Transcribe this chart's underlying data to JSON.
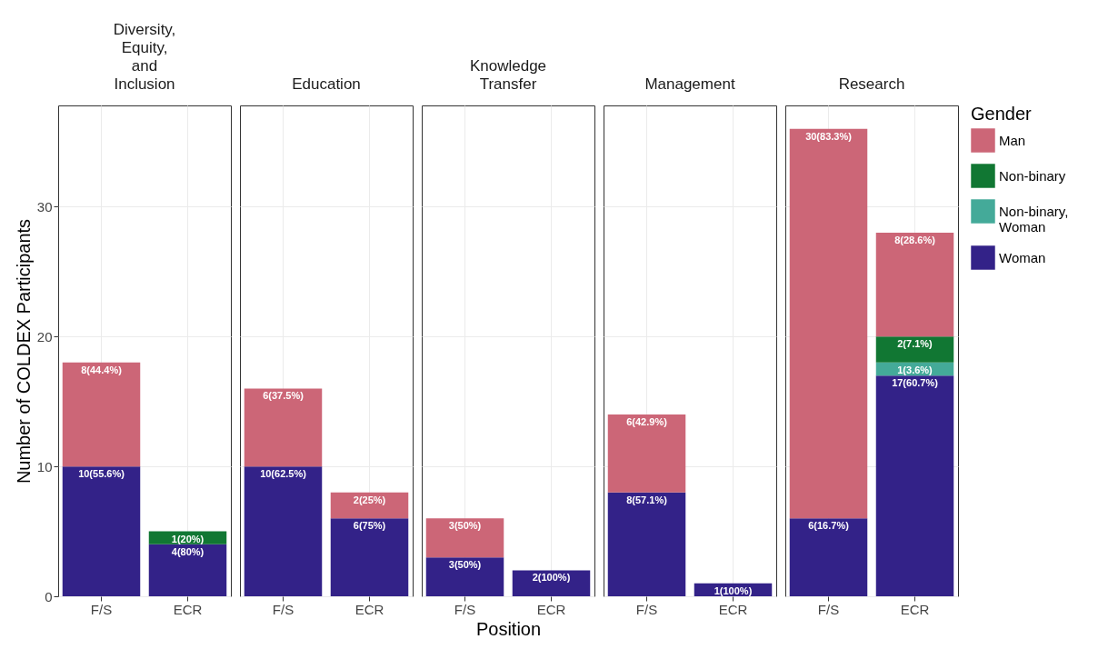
{
  "chart_data": [
    {
      "type": "bar",
      "title": "Diversity, Equity, and Inclusion",
      "ylabel": "Number of COLDEX Participants",
      "categories": [
        "F/S",
        "ECR"
      ],
      "stacked": true,
      "ylim": [
        0,
        37.8
      ],
      "yticks": [
        0,
        10,
        20,
        30
      ],
      "grid": true,
      "series": [
        {
          "color": "#332288",
          "values": [
            10,
            4
          ],
          "value_labels": [
            "10(55.6%)",
            "4(80%)"
          ]
        },
        {
          "color": "#117733",
          "values": [
            null,
            1
          ],
          "value_labels": [
            null,
            "1(20%)"
          ]
        },
        {
          "color": "#cc6677",
          "values": [
            8,
            null
          ],
          "value_labels": [
            "8(44.4%)",
            null
          ]
        }
      ]
    },
    {
      "type": "bar",
      "title": "Education",
      "categories": [
        "F/S",
        "ECR"
      ],
      "stacked": true,
      "ylim": [
        0,
        37.8
      ],
      "yticks": [
        0,
        10,
        20,
        30
      ],
      "grid": true,
      "tick_labels": "x",
      "series": [
        {
          "color": "#332288",
          "values": [
            10,
            6
          ],
          "value_labels": [
            "10(62.5%)",
            "6(75%)"
          ]
        },
        {
          "color": "#cc6677",
          "values": [
            6,
            2
          ],
          "value_labels": [
            "6(37.5%)",
            "2(25%)"
          ]
        }
      ]
    },
    {
      "type": "bar",
      "title": "Knowledge Transfer",
      "xlabel": "Position",
      "categories": [
        "F/S",
        "ECR"
      ],
      "stacked": true,
      "ylim": [
        0,
        37.8
      ],
      "yticks": [
        0,
        10,
        20,
        30
      ],
      "grid": true,
      "tick_labels": "x",
      "series": [
        {
          "color": "#332288",
          "values": [
            3,
            2
          ],
          "value_labels": [
            "3(50%)",
            "2(100%)"
          ]
        },
        {
          "color": "#cc6677",
          "values": [
            3,
            null
          ],
          "value_labels": [
            "3(50%)",
            null
          ]
        }
      ]
    },
    {
      "type": "bar",
      "title": "Management",
      "categories": [
        "F/S",
        "ECR"
      ],
      "stacked": true,
      "ylim": [
        0,
        37.8
      ],
      "yticks": [
        0,
        10,
        20,
        30
      ],
      "grid": true,
      "tick_labels": "x",
      "series": [
        {
          "color": "#332288",
          "values": [
            8,
            1
          ],
          "value_labels": [
            "8(57.1%)",
            "1(100%)"
          ]
        },
        {
          "color": "#cc6677",
          "values": [
            6,
            null
          ],
          "value_labels": [
            "6(42.9%)",
            null
          ]
        }
      ]
    },
    {
      "type": "bar",
      "title": "Research",
      "legend_title": "Gender",
      "categories": [
        "F/S",
        "ECR"
      ],
      "stacked": true,
      "ylim": [
        0,
        37.8
      ],
      "yticks": [
        0,
        10,
        20,
        30
      ],
      "grid": true,
      "legend": "right",
      "tick_labels": "x",
      "series": [
        {
          "name": "Woman",
          "color": "#332288",
          "values": [
            6,
            17
          ],
          "value_labels": [
            "6(16.7%)",
            "17(60.7%)"
          ]
        },
        {
          "name": "Non-binary, Woman",
          "color": "#44aa99",
          "values": [
            null,
            1
          ],
          "value_labels": [
            null,
            "1(3.6%)"
          ]
        },
        {
          "name": "Non-binary",
          "color": "#117733",
          "values": [
            null,
            2
          ],
          "value_labels": [
            null,
            "2(7.1%)"
          ]
        },
        {
          "name": "Man",
          "color": "#cc6677",
          "values": [
            30,
            8
          ],
          "value_labels": [
            "30(83.3%)",
            "8(28.6%)"
          ]
        }
      ]
    }
  ]
}
